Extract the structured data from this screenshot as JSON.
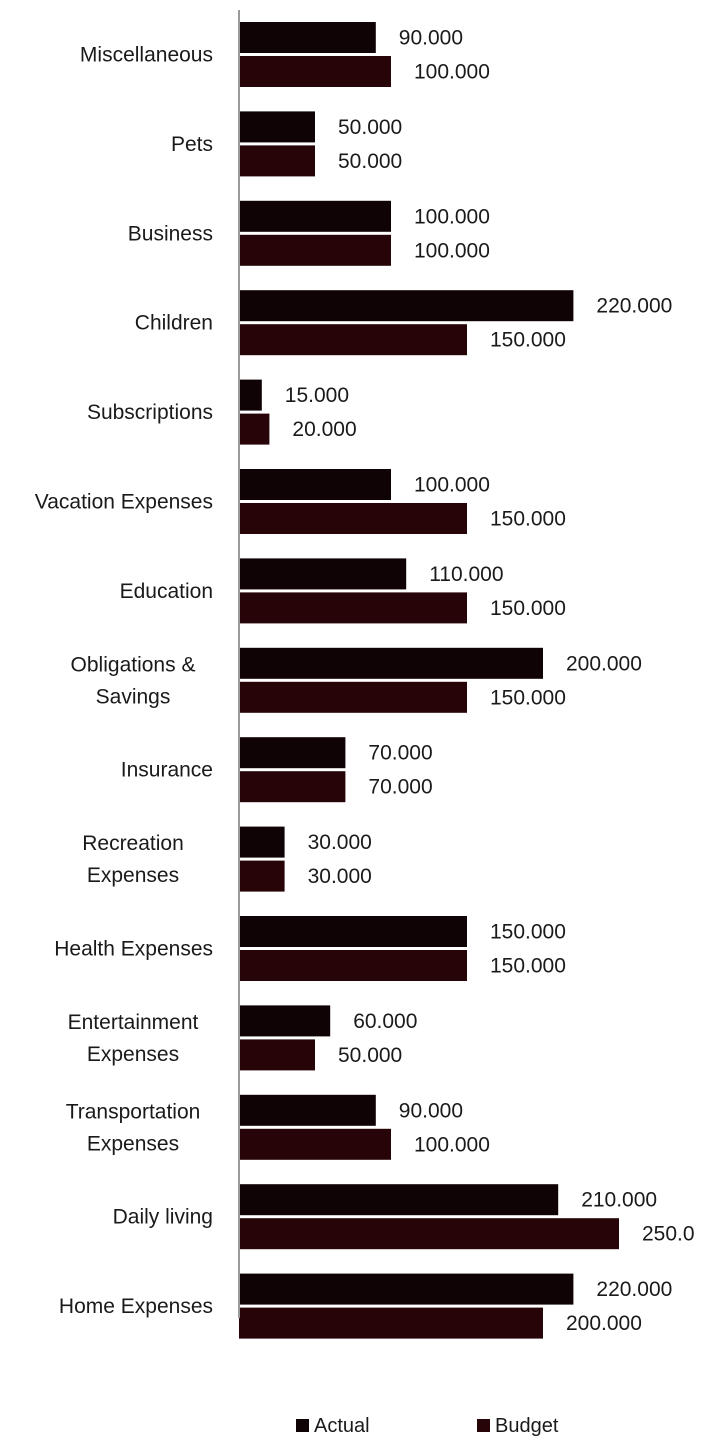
{
  "chart_data": {
    "type": "bar",
    "orientation": "horizontal",
    "categories": [
      "Miscellaneous",
      "Pets",
      "Business",
      "Children",
      "Subscriptions",
      "Vacation Expenses",
      "Education",
      "Obligations & Savings",
      "Insurance",
      "Recreation Expenses",
      "Health Expenses",
      "Entertainment Expenses",
      "Transportation Expenses",
      "Daily living",
      "Home Expenses"
    ],
    "series": [
      {
        "name": "Actual",
        "color": "#0f0306",
        "values": [
          90,
          50,
          100,
          220,
          15,
          100,
          110,
          200,
          70,
          30,
          150,
          60,
          90,
          210,
          220
        ],
        "labels": [
          "90.000",
          "50.000",
          "100.000",
          "220.000",
          "15.000",
          "100.000",
          "110.000",
          "200.000",
          "70.000",
          "30.000",
          "150.000",
          "60.000",
          "90.000",
          "210.000",
          "220.000"
        ]
      },
      {
        "name": "Budget",
        "color": "#260407",
        "values": [
          100,
          50,
          100,
          150,
          20,
          150,
          150,
          150,
          70,
          30,
          150,
          50,
          100,
          250,
          200
        ],
        "labels": [
          "100.000",
          "50.000",
          "100.000",
          "150.000",
          "20.000",
          "150.000",
          "150.000",
          "150.000",
          "70.000",
          "30.000",
          "150.000",
          "50.000",
          "100.000",
          "250.0",
          "200.000"
        ]
      }
    ],
    "xlim": [
      0,
      280
    ],
    "grid": false,
    "legend_position": "bottom"
  }
}
